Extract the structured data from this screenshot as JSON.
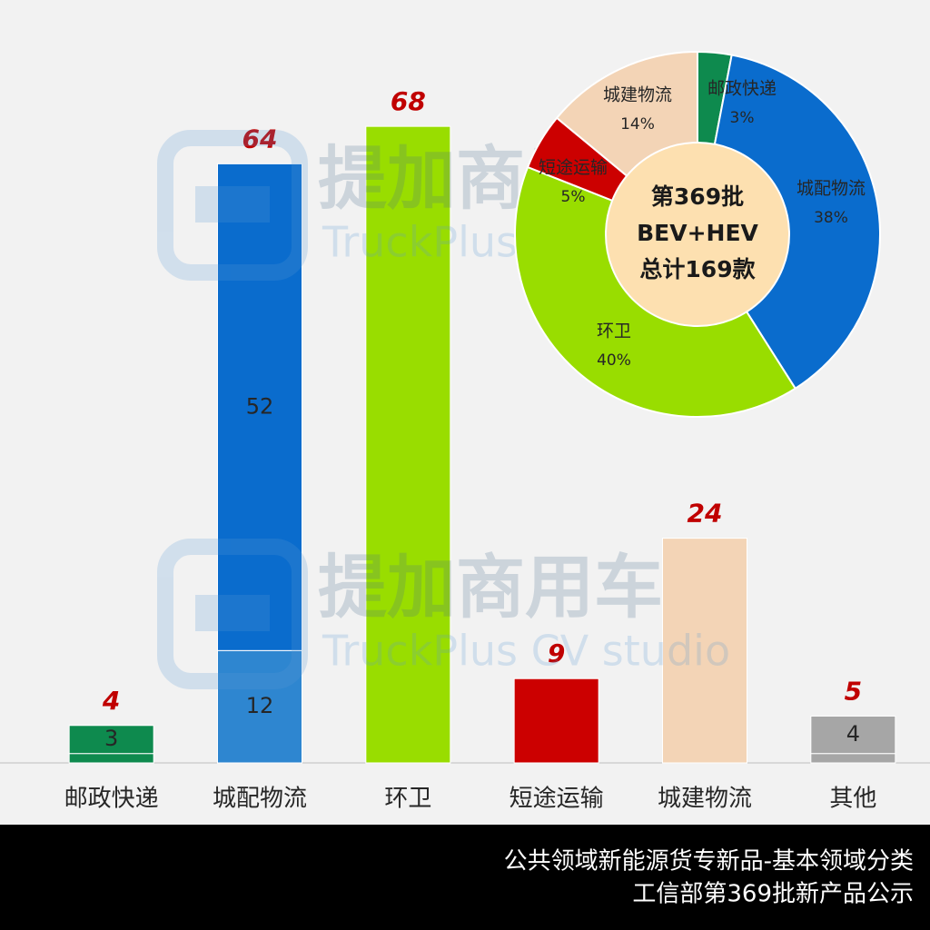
{
  "chart_data": [
    {
      "type": "bar",
      "categories": [
        "邮政快递",
        "城配物流",
        "环卫",
        "短途运输",
        "城建物流",
        "其他"
      ],
      "series": [
        {
          "colors": [
            "#0e8a4e",
            "#2e86d0",
            "#99dd00",
            "#cc0000",
            "#f3d4b6",
            "#a6a6a6"
          ],
          "values": [
            1,
            12,
            68,
            9,
            24,
            1
          ],
          "value_labels": [
            null,
            "12",
            null,
            null,
            null,
            null
          ]
        },
        {
          "colors": [
            "#0e8a4e",
            "#0a6ccd",
            "#99dd00",
            "#cc0000",
            "#f3d4b6",
            "#a6a6a6"
          ],
          "values": [
            3,
            52,
            null,
            null,
            null,
            4
          ],
          "value_labels": [
            "3",
            "52",
            null,
            null,
            null,
            "4"
          ]
        }
      ],
      "totals": [
        4,
        64,
        68,
        9,
        24,
        5
      ],
      "total_color": "#c00000",
      "ylim": [
        0,
        75
      ]
    },
    {
      "type": "pie",
      "categories": [
        "邮政快递",
        "城配物流",
        "环卫",
        "短途运输",
        "城建物流"
      ],
      "values": [
        3,
        38,
        40,
        5,
        14
      ],
      "value_labels": [
        "3%",
        "38%",
        "40%",
        "5%",
        "14%"
      ],
      "colors": [
        "#0e8a4e",
        "#0a6ccd",
        "#99dd00",
        "#cc0000",
        "#f3d4b6"
      ],
      "center_text": [
        "第369批",
        "BEV+HEV",
        "总计169款"
      ],
      "center_color": "#fde0b0"
    }
  ],
  "watermark": {
    "title": "提加商用车",
    "subtitle": "TruckPlus CV studio"
  },
  "footer": [
    "公共领域新能源货专新品-基本领域分类",
    "工信部第369批新产品公示"
  ]
}
